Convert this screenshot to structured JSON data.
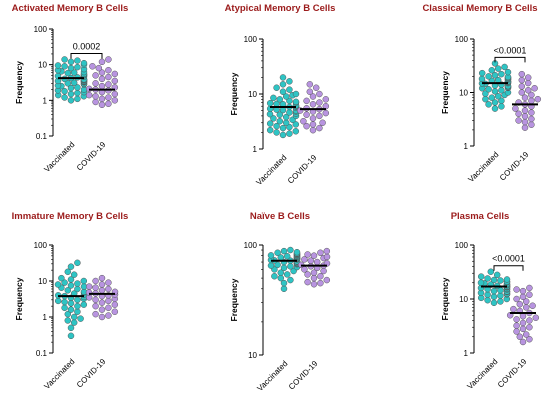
{
  "chart_data": [
    {
      "type": "scatter",
      "title": "Activated Memory B Cells",
      "ylabel": "Frequency",
      "yscale": "log",
      "ylim": [
        0.1,
        100
      ],
      "yticks": [
        "0.1",
        "1",
        "10",
        "100"
      ],
      "categories": [
        "Vaccinated",
        "COVID-19"
      ],
      "series_colors": [
        "#2ec4c4",
        "#b894e0"
      ],
      "medians": [
        4.2,
        2.0
      ],
      "pvalue": "0.0002",
      "values": [
        [
          14,
          13,
          12,
          11,
          10,
          9.5,
          9,
          8.5,
          8,
          7.5,
          7,
          6.5,
          6.2,
          6,
          5.8,
          5.5,
          5.2,
          5,
          4.8,
          4.6,
          4.4,
          4.2,
          4,
          3.9,
          3.8,
          3.7,
          3.6,
          3.5,
          3.4,
          3.3,
          3.2,
          3.1,
          3,
          2.9,
          2.8,
          2.6,
          2.5,
          2.3,
          2.2,
          2,
          1.9,
          1.8,
          1.7,
          1.6,
          1.5,
          1.4,
          1.3,
          1.2,
          1.1,
          1
        ],
        [
          14,
          12,
          9,
          8,
          7,
          6,
          5.5,
          5,
          4.5,
          4,
          3.5,
          3,
          2.8,
          2.5,
          2.3,
          2.1,
          2,
          1.9,
          1.7,
          1.5,
          1.4,
          1.3,
          1.2,
          1.1,
          1,
          0.9,
          0.8,
          0.75
        ]
      ]
    },
    {
      "type": "scatter",
      "title": "Atypical Memory B Cells",
      "ylabel": "Frequency",
      "yscale": "log",
      "ylim": [
        1,
        100
      ],
      "yticks": [
        "1",
        "10",
        "100"
      ],
      "categories": [
        "Vaccinated",
        "COVID-19"
      ],
      "series_colors": [
        "#2ec4c4",
        "#b894e0"
      ],
      "medians": [
        5.8,
        5.3
      ],
      "pvalue": "",
      "values": [
        [
          20,
          17,
          15,
          13,
          12,
          11,
          10,
          9.5,
          9,
          8.5,
          8,
          7.5,
          7,
          6.8,
          6.5,
          6.2,
          6,
          5.8,
          5.6,
          5.4,
          5.2,
          5,
          4.8,
          4.6,
          4.4,
          4.2,
          4,
          3.8,
          3.6,
          3.4,
          3.2,
          3,
          2.9,
          2.8,
          2.6,
          2.5,
          2.4,
          2.2,
          2.1,
          2,
          1.9,
          1.8,
          7.2,
          6.6,
          5.9,
          5.1,
          4.3
        ],
        [
          15,
          13,
          11,
          10,
          9,
          8,
          7.5,
          7,
          6.5,
          6,
          5.5,
          5.3,
          5,
          4.8,
          4.5,
          4.2,
          4,
          3.6,
          3.2,
          3,
          2.8,
          2.6,
          2.4,
          2.2
        ]
      ]
    },
    {
      "type": "scatter",
      "title": "Classical Memory B Cells",
      "ylabel": "Frequency",
      "yscale": "log",
      "ylim": [
        1,
        100
      ],
      "yticks": [
        "1",
        "10",
        "100"
      ],
      "categories": [
        "Vaccinated",
        "COVID-19"
      ],
      "series_colors": [
        "#2ec4c4",
        "#b894e0"
      ],
      "medians": [
        15,
        6
      ],
      "pvalue": "<0.0001",
      "values": [
        [
          35,
          30,
          28,
          26,
          24,
          23,
          22,
          21,
          20,
          19.5,
          19,
          18.5,
          18,
          17.5,
          17,
          16.5,
          16,
          15.5,
          15,
          14.5,
          14,
          13.5,
          13,
          12.5,
          12,
          11.5,
          11,
          10.5,
          10,
          9.5,
          9,
          8.5,
          8,
          7.5,
          7,
          6.5,
          6,
          5.5,
          5,
          17.8,
          16.2,
          14.8,
          13.2,
          12.2
        ],
        [
          22,
          19,
          17,
          15,
          13,
          12,
          11,
          10,
          9,
          8,
          7.5,
          7,
          6.5,
          6,
          5.5,
          5,
          4.6,
          4.2,
          4,
          3.6,
          3.2,
          3,
          2.8,
          2.5,
          2.2
        ]
      ]
    },
    {
      "type": "scatter",
      "title": "Immature Memory B Cells",
      "ylabel": "Frequency",
      "yscale": "log",
      "ylim": [
        0.1,
        100
      ],
      "yticks": [
        "0.1",
        "1",
        "10",
        "100"
      ],
      "categories": [
        "Vaccinated",
        "COVID-19"
      ],
      "series_colors": [
        "#2ec4c4",
        "#b894e0"
      ],
      "medians": [
        3.8,
        4.4
      ],
      "pvalue": "",
      "values": [
        [
          32,
          25,
          18,
          15,
          12,
          11,
          10,
          9,
          8.5,
          8,
          7.5,
          7,
          6.5,
          6,
          5.5,
          5,
          4.8,
          4.5,
          4.2,
          4,
          3.8,
          3.6,
          3.4,
          3.2,
          3,
          2.8,
          2.6,
          2.4,
          2.2,
          2,
          1.8,
          1.6,
          1.4,
          1.2,
          1,
          0.9,
          0.8,
          0.7,
          0.5,
          0.3
        ],
        [
          12,
          10,
          9,
          8,
          7,
          6.5,
          6,
          5.5,
          5,
          4.8,
          4.5,
          4.2,
          4,
          3.8,
          3.5,
          3.2,
          3,
          2.8,
          2.5,
          2.2,
          2,
          1.8,
          1.6,
          1.4,
          1.2,
          1.1,
          1
        ]
      ]
    },
    {
      "type": "scatter",
      "title": "Naïve B Cells",
      "ylabel": "Frequency",
      "yscale": "log",
      "ylim": [
        10,
        100
      ],
      "yticks": [
        "10",
        "100"
      ],
      "categories": [
        "Vaccinated",
        "COVID-19"
      ],
      "series_colors": [
        "#2ec4c4",
        "#b894e0"
      ],
      "medians": [
        72,
        65
      ],
      "pvalue": "",
      "values": [
        [
          90,
          88,
          86,
          85,
          84,
          83,
          82,
          81,
          80,
          79,
          78,
          77,
          76,
          75,
          74,
          73,
          72,
          71,
          70,
          69,
          68,
          67,
          66,
          65,
          64,
          63,
          62,
          60,
          58,
          56,
          54,
          52,
          50,
          48,
          45,
          40,
          80.5,
          78.5,
          76.5,
          74.5,
          72.5,
          70.5,
          68.5
        ],
        [
          88,
          85,
          82,
          80,
          78,
          76,
          74,
          72,
          70,
          68,
          66,
          65,
          64,
          62,
          60,
          58,
          56,
          54,
          52,
          50,
          48,
          46,
          45,
          44
        ]
      ]
    },
    {
      "type": "scatter",
      "title": "Plasma Cells",
      "ylabel": "Frequency",
      "yscale": "log",
      "ylim": [
        1,
        100
      ],
      "yticks": [
        "1",
        "10",
        "100"
      ],
      "categories": [
        "Vaccinated",
        "COVID-19"
      ],
      "series_colors": [
        "#2ec4c4",
        "#b894e0"
      ],
      "medians": [
        17,
        5.5
      ],
      "pvalue": "<0.0001",
      "values": [
        [
          32,
          28,
          26,
          24,
          23,
          22,
          21,
          20,
          19.5,
          19,
          18.5,
          18,
          17.5,
          17,
          16.5,
          16,
          15.5,
          15,
          14.5,
          14,
          13.5,
          13,
          12.5,
          12,
          11.5,
          11,
          10.5,
          10,
          9.5,
          9,
          8.5,
          22.5,
          20.5,
          18.2,
          16.8,
          15.2,
          13.8,
          12.2
        ],
        [
          16,
          15,
          14,
          12,
          11,
          10,
          9,
          8,
          7.5,
          7,
          6.5,
          6,
          5.5,
          5,
          4.8,
          4.5,
          4.2,
          4,
          3.6,
          3.2,
          3,
          2.8,
          2.5,
          2.2,
          2,
          1.8,
          1.6
        ]
      ]
    }
  ]
}
